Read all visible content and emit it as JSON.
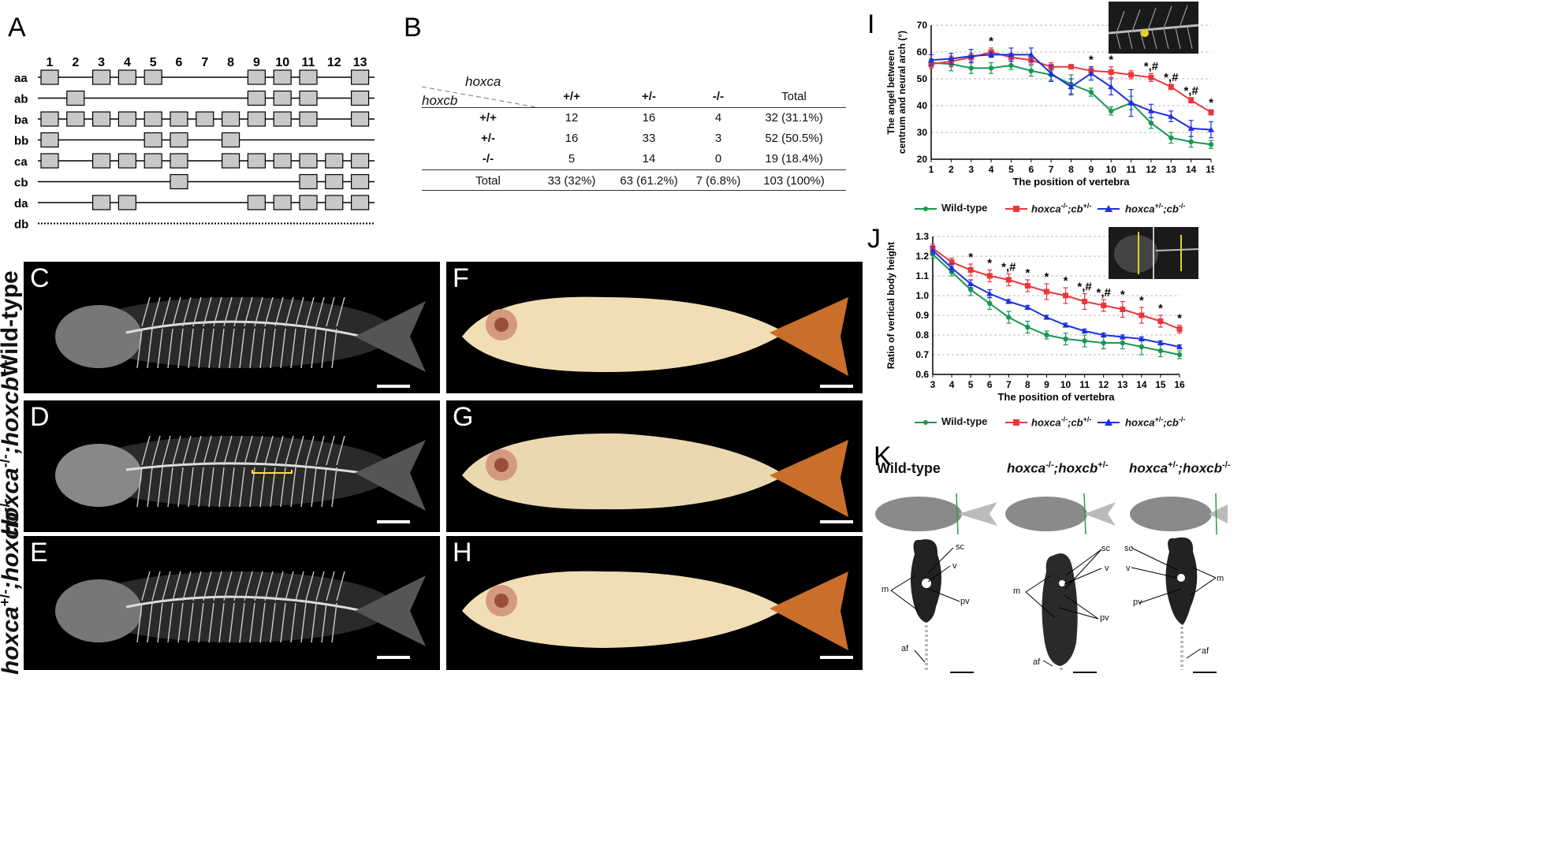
{
  "panels": {
    "A": "A",
    "B": "B",
    "C": "C",
    "D": "D",
    "E": "E",
    "F": "F",
    "G": "G",
    "H": "H",
    "I": "I",
    "J": "J",
    "K": "K"
  },
  "panelA": {
    "columns": [
      "1",
      "2",
      "3",
      "4",
      "5",
      "6",
      "7",
      "8",
      "9",
      "10",
      "11",
      "12",
      "13"
    ],
    "clusters": [
      {
        "name": "aa",
        "genes": [
          1,
          3,
          4,
          5,
          9,
          10,
          11,
          13
        ],
        "line": "solid"
      },
      {
        "name": "ab",
        "genes": [
          2,
          9,
          10,
          11,
          13
        ],
        "line": "solid"
      },
      {
        "name": "ba",
        "genes": [
          1,
          2,
          3,
          4,
          5,
          6,
          7,
          8,
          9,
          10,
          11,
          13
        ],
        "line": "solid"
      },
      {
        "name": "bb",
        "genes": [
          1,
          5,
          6,
          8
        ],
        "line": "solid"
      },
      {
        "name": "ca",
        "genes": [
          1,
          3,
          4,
          5,
          6,
          8,
          9,
          10,
          11,
          12,
          13
        ],
        "line": "solid"
      },
      {
        "name": "cb",
        "genes": [
          6,
          11,
          12,
          13
        ],
        "line": "solid"
      },
      {
        "name": "da",
        "genes": [
          3,
          4,
          9,
          10,
          11,
          12,
          13
        ],
        "line": "solid"
      },
      {
        "name": "db",
        "genes": [],
        "line": "dotted"
      }
    ]
  },
  "panelB": {
    "col_gene": "hoxca",
    "row_gene": "hoxcb",
    "headers": [
      "+/+",
      "+/-",
      "-/-",
      "Total"
    ],
    "rows": [
      {
        "label": "+/+",
        "cells": [
          "12",
          "16",
          "4",
          "32 (31.1%)"
        ]
      },
      {
        "label": "+/-",
        "cells": [
          "16",
          "33",
          "3",
          "52 (50.5%)"
        ]
      },
      {
        "label": "-/-",
        "cells": [
          "5",
          "14",
          "0",
          "19 (18.4%)"
        ]
      }
    ],
    "total_row": {
      "label": "Total",
      "cells": [
        "33 (32%)",
        "63 (61.2%)",
        "7 (6.8%)",
        "103 (100%)"
      ]
    }
  },
  "row_labels": {
    "wt": "Wild-type",
    "d_a": "hoxca",
    "d_a_sup": "-/-",
    "d_b": ";hoxcb",
    "d_b_sup": "+/-",
    "e_a": "hoxca",
    "e_a_sup": "+/-",
    "e_b": ";hoxcb",
    "e_b_sup": "-/-"
  },
  "legend": {
    "wt": "Wild-type",
    "m1_a": "hoxca",
    "m1_a_sup": "-/-",
    "m1_b": ";cb",
    "m1_b_sup": "+/-",
    "m2_a": "hoxca",
    "m2_a_sup": "+/-",
    "m2_b": ";cb",
    "m2_b_sup": "-/-"
  },
  "panelK": {
    "wt": "Wild-type",
    "m1_a": "hoxca",
    "m1_a_sup": "-/-",
    "m1_b": ";hoxcb",
    "m1_b_sup": "+/-",
    "m2_a": "hoxca",
    "m2_a_sup": "+/-",
    "m2_b": ";hoxcb",
    "m2_b_sup": "-/-",
    "labels": {
      "sc": "sc",
      "v": "v",
      "m": "m",
      "pv": "pv",
      "af": "af"
    }
  },
  "colors": {
    "wt": "#1a9850",
    "m1": "#e8383d",
    "m2": "#1f2fe0"
  },
  "chart_data": [
    {
      "type": "line",
      "ylabel": "The angel between centrum and neural arch (°)",
      "xlabel": "The position of vertebra",
      "x": [
        1,
        2,
        3,
        4,
        5,
        6,
        7,
        8,
        9,
        10,
        11,
        12,
        13,
        14,
        15
      ],
      "ylim": [
        20,
        70
      ],
      "yticks": [
        20,
        30,
        40,
        50,
        60,
        70
      ],
      "grid": true,
      "series": [
        {
          "name": "Wild-type",
          "color": "#1a9850",
          "values": [
            56,
            55.5,
            54,
            54,
            55,
            53,
            51.5,
            48,
            45,
            38,
            41,
            33.5,
            28,
            26.5,
            25.5
          ],
          "err": [
            1.5,
            2.5,
            2,
            2,
            1.5,
            2,
            2,
            3.5,
            1.5,
            1.5,
            2.5,
            2,
            2,
            2,
            1.5
          ]
        },
        {
          "name": "hoxca-/-;cb+/-",
          "color": "#e8383d",
          "values": [
            55.5,
            56.5,
            58,
            60,
            58,
            57,
            54.5,
            54.5,
            53,
            52.5,
            51.5,
            50.5,
            47,
            42,
            37.5
          ],
          "err": [
            1.5,
            2,
            1.5,
            1.5,
            1.5,
            1.5,
            1.5,
            0.8,
            1.5,
            2,
            1.5,
            1.5,
            1,
            1,
            1
          ]
        },
        {
          "name": "hoxca+/-;cb-/-",
          "color": "#1f2fe0",
          "values": [
            57,
            57.5,
            58.5,
            59,
            59,
            59,
            52,
            47,
            52,
            47,
            41,
            38,
            36,
            31.5,
            31
          ],
          "err": [
            2,
            2,
            2.5,
            1,
            2.5,
            2.5,
            3,
            3,
            2.5,
            3,
            5,
            2.5,
            2,
            3,
            3
          ]
        }
      ],
      "annotations": {
        "4": "*",
        "9": "*",
        "10": "*",
        "12": "*,#",
        "13": "*,#",
        "14": "*,#",
        "15": "*"
      }
    },
    {
      "type": "line",
      "ylabel": "Ratio of vertical body height",
      "xlabel": "The position of vertebra",
      "x": [
        3,
        4,
        5,
        6,
        7,
        8,
        9,
        10,
        11,
        12,
        13,
        14,
        15,
        16
      ],
      "ylim": [
        0.6,
        1.3
      ],
      "yticks": [
        0.6,
        0.7,
        0.8,
        0.9,
        1.0,
        1.1,
        1.2,
        1.3
      ],
      "grid": true,
      "series": [
        {
          "name": "Wild-type",
          "color": "#1a9850",
          "values": [
            1.21,
            1.12,
            1.03,
            0.96,
            0.89,
            0.84,
            0.8,
            0.78,
            0.77,
            0.76,
            0.76,
            0.74,
            0.72,
            0.7
          ],
          "err": [
            0.02,
            0.02,
            0.03,
            0.03,
            0.03,
            0.03,
            0.02,
            0.03,
            0.03,
            0.03,
            0.03,
            0.04,
            0.03,
            0.02
          ]
        },
        {
          "name": "hoxca-/-;cb+/-",
          "color": "#e8383d",
          "values": [
            1.24,
            1.17,
            1.13,
            1.1,
            1.08,
            1.05,
            1.02,
            1.0,
            0.97,
            0.95,
            0.93,
            0.9,
            0.87,
            0.83
          ],
          "err": [
            0.02,
            0.02,
            0.03,
            0.03,
            0.03,
            0.03,
            0.04,
            0.04,
            0.04,
            0.03,
            0.04,
            0.04,
            0.03,
            0.02
          ]
        },
        {
          "name": "hoxca+/-;cb-/-",
          "color": "#1f2fe0",
          "values": [
            1.23,
            1.14,
            1.06,
            1.01,
            0.97,
            0.94,
            0.89,
            0.85,
            0.82,
            0.8,
            0.79,
            0.78,
            0.76,
            0.74
          ],
          "err": [
            0.02,
            0.02,
            0.02,
            0.02,
            0.01,
            0.01,
            0.01,
            0.01,
            0.01,
            0.01,
            0.01,
            0.01,
            0.01,
            0.01
          ]
        }
      ],
      "annotations": {
        "5": "*",
        "6": "*",
        "7": "*,#",
        "8": "*",
        "9": "*",
        "10": "*",
        "11": "*,#",
        "12": "*,#",
        "13": "*",
        "14": "*",
        "15": "*",
        "16": "*"
      }
    }
  ]
}
